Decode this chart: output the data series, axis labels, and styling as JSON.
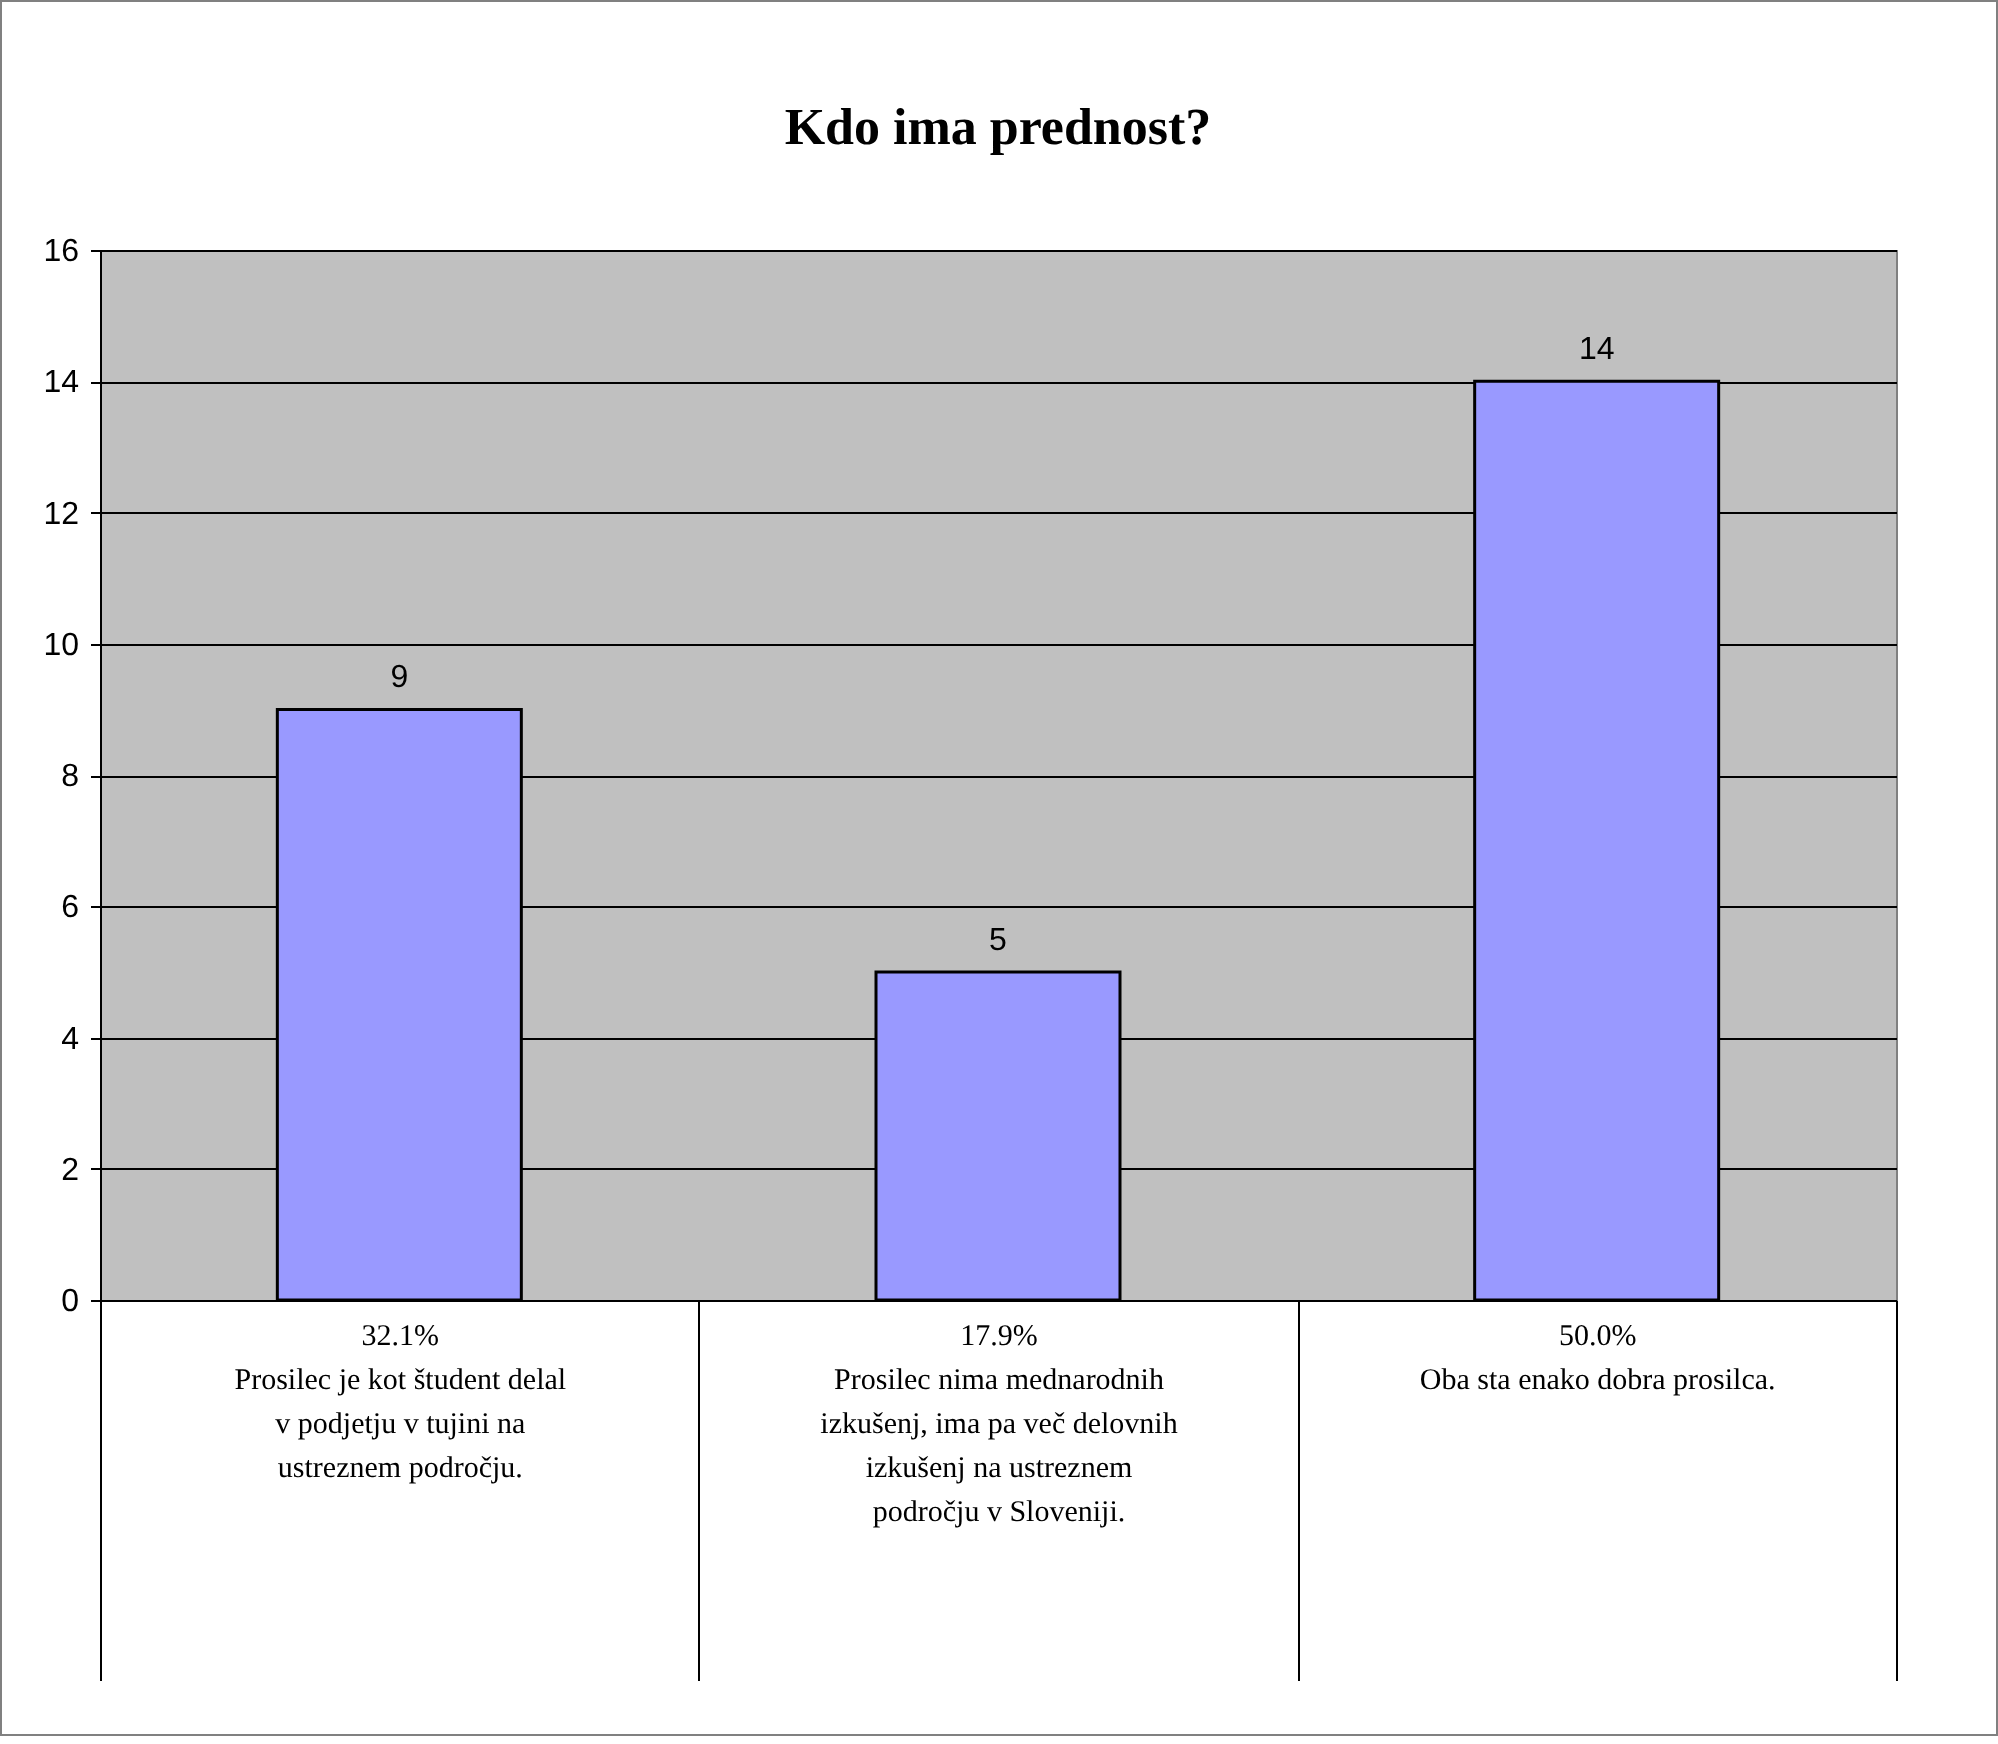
{
  "chart_data": {
    "type": "bar",
    "title": "Kdo ima prednost?",
    "categories": [
      "Prosilec je kot študent delal v podjetju v tujini na ustreznem področju.",
      "Prosilec nima mednarodnih izkušenj, ima pa več delovnih izkušenj na ustreznem področju v Sloveniji.",
      "Oba sta enako dobra prosilca."
    ],
    "values": [
      9,
      5,
      14
    ],
    "color": "#9999ff",
    "ylim": [
      0,
      16
    ],
    "yticks": [
      0,
      2,
      4,
      6,
      8,
      10,
      12,
      14,
      16
    ],
    "grid": "y",
    "data_labels": true,
    "annotations": [
      "32.1%",
      "17.9%",
      "50.0%"
    ]
  }
}
